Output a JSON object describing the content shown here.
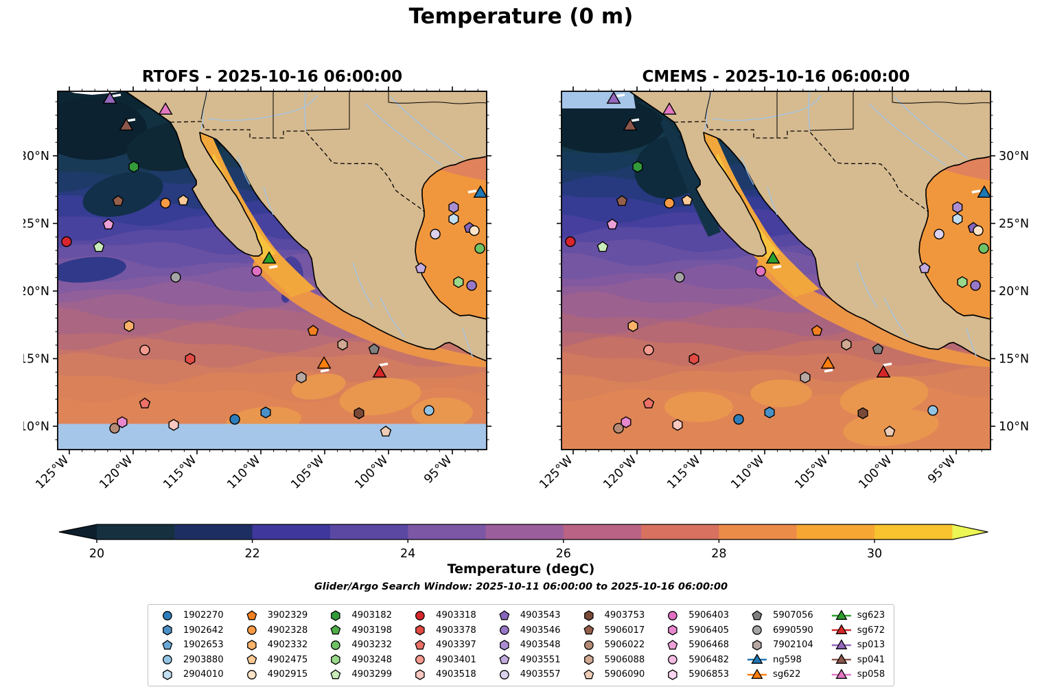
{
  "title": "Temperature (0 m)",
  "subtitle": "Glider/Argo Search Window: 2025-10-11 06:00:00 to 2025-10-16 06:00:00",
  "panels": [
    {
      "title": "RTOFS - 2025-10-16 06:00:00"
    },
    {
      "title": "CMEMS - 2025-10-16 06:00:00"
    }
  ],
  "colorbar": {
    "label": "Temperature (degC)",
    "ticks": [
      "20",
      "22",
      "24",
      "26",
      "28",
      "30"
    ],
    "tick_values": [
      20,
      22,
      24,
      26,
      28,
      30
    ],
    "range": [
      20,
      31
    ],
    "extend": "both",
    "segments": [
      "#0d1f2c",
      "#16303f",
      "#1d2e63",
      "#40379c",
      "#5a48a3",
      "#7b57a5",
      "#9b5e9c",
      "#bb6384",
      "#d87160",
      "#ec8c49",
      "#f6a633",
      "#f8c32e",
      "#ecf655"
    ]
  },
  "axes": {
    "x_tick_labels": [
      "125°W",
      "120°W",
      "115°W",
      "110°W",
      "105°W",
      "100°W",
      "95°W"
    ],
    "y_tick_labels": [
      "30°N",
      "25°N",
      "20°N",
      "15°N",
      "10°N"
    ]
  },
  "style": {
    "land": "#d6ba90",
    "no_data_ocean": "#a5c6e8",
    "coast": "#000000",
    "river": "#9ec4e8",
    "gulf_warm": "#f2a73c",
    "gulf_core": "#f7c33e",
    "gom_warm": "#f0973e",
    "coastal_warm": "#ec9547",
    "track_white": "#ffffff"
  },
  "legend": {
    "entries": [
      {
        "id": "1902270",
        "shape": "circle",
        "color": "#2d7dbb"
      },
      {
        "id": "1902642",
        "shape": "hexagon",
        "color": "#4a90c6"
      },
      {
        "id": "1902653",
        "shape": "pentagon",
        "color": "#6aa7d4"
      },
      {
        "id": "2903880",
        "shape": "circle",
        "color": "#93c4e4"
      },
      {
        "id": "2904010",
        "shape": "hexagon",
        "color": "#c2def1"
      },
      {
        "id": "3902329",
        "shape": "pentagon",
        "color": "#f28020"
      },
      {
        "id": "4902328",
        "shape": "circle",
        "color": "#f99b45"
      },
      {
        "id": "4902332",
        "shape": "hexagon",
        "color": "#fbb269"
      },
      {
        "id": "4902475",
        "shape": "pentagon",
        "color": "#fcca96"
      },
      {
        "id": "4902915",
        "shape": "circle",
        "color": "#fde4c8"
      },
      {
        "id": "4903182",
        "shape": "hexagon",
        "color": "#33993a"
      },
      {
        "id": "4903198",
        "shape": "pentagon",
        "color": "#4fae4a"
      },
      {
        "id": "4903232",
        "shape": "circle",
        "color": "#6ec264"
      },
      {
        "id": "4903248",
        "shape": "hexagon",
        "color": "#9ad88b"
      },
      {
        "id": "4903299",
        "shape": "pentagon",
        "color": "#c9ecba"
      },
      {
        "id": "4903318",
        "shape": "circle",
        "color": "#d8262c"
      },
      {
        "id": "4903378",
        "shape": "hexagon",
        "color": "#e14b44"
      },
      {
        "id": "4903397",
        "shape": "pentagon",
        "color": "#ec7168"
      },
      {
        "id": "4903401",
        "shape": "circle",
        "color": "#f49b90"
      },
      {
        "id": "4903518",
        "shape": "hexagon",
        "color": "#fac8c0"
      },
      {
        "id": "4903543",
        "shape": "pentagon",
        "color": "#8766bb"
      },
      {
        "id": "4903546",
        "shape": "circle",
        "color": "#9878c6"
      },
      {
        "id": "4903548",
        "shape": "hexagon",
        "color": "#ab8ed2"
      },
      {
        "id": "4903551",
        "shape": "pentagon",
        "color": "#c2abdf"
      },
      {
        "id": "4903557",
        "shape": "circle",
        "color": "#dcd2ee"
      },
      {
        "id": "4903753",
        "shape": "hexagon",
        "color": "#7a4a38"
      },
      {
        "id": "5906017",
        "shape": "pentagon",
        "color": "#95604b"
      },
      {
        "id": "5906022",
        "shape": "circle",
        "color": "#b58a74"
      },
      {
        "id": "5906088",
        "shape": "hexagon",
        "color": "#d0a993"
      },
      {
        "id": "5906090",
        "shape": "pentagon",
        "color": "#edccb6"
      },
      {
        "id": "5906403",
        "shape": "circle",
        "color": "#e06fc3"
      },
      {
        "id": "5906405",
        "shape": "hexagon",
        "color": "#e787cd"
      },
      {
        "id": "5906468",
        "shape": "pentagon",
        "color": "#eda0d7"
      },
      {
        "id": "5906482",
        "shape": "circle",
        "color": "#f4bce3"
      },
      {
        "id": "5906853",
        "shape": "hexagon",
        "color": "#f9d5ef"
      },
      {
        "id": "5907056",
        "shape": "pentagon",
        "color": "#7f7f7f"
      },
      {
        "id": "6990590",
        "shape": "circle",
        "color": "#a5a5a5"
      },
      {
        "id": "7902104",
        "shape": "hexagon",
        "color": "#b7a7a3"
      },
      {
        "id": "ng598",
        "shape": "triangle",
        "color": "#1f77b4",
        "glider": true
      },
      {
        "id": "sg622",
        "shape": "triangle",
        "color": "#ff7f0e",
        "glider": true
      },
      {
        "id": "sg623",
        "shape": "triangle",
        "color": "#2ca02c",
        "glider": true
      },
      {
        "id": "sg672",
        "shape": "triangle",
        "color": "#d62728",
        "glider": true
      },
      {
        "id": "sp013",
        "shape": "triangle",
        "color": "#9467bd",
        "glider": true
      },
      {
        "id": "sp041",
        "shape": "triangle",
        "color": "#8c564b",
        "glider": true
      },
      {
        "id": "sp058",
        "shape": "triangle",
        "color": "#e377c2",
        "glider": true
      }
    ]
  },
  "chart_data": {
    "type": "heatmap",
    "title": "Temperature (0 m)",
    "variable": "Sea surface temperature (degC)",
    "search_window": "2025-10-11 06:00:00 to 2025-10-16 06:00:00",
    "extent": {
      "lon_w": [
        125.9,
        92.3
      ],
      "lat": [
        8.3,
        34.8
      ]
    },
    "grid": false,
    "legend_position": "bottom",
    "panels": [
      {
        "name": "RTOFS",
        "time": "2025-10-16 06:00:00",
        "no_data": "south_of_10N",
        "lat_bands": [
          [
            35.0,
            "#0d2633"
          ],
          [
            33.2,
            "#113040"
          ],
          [
            31.6,
            "#15384b"
          ],
          [
            30.2,
            "#193a57"
          ],
          [
            29.0,
            "#1e3a68"
          ],
          [
            27.8,
            "#283b7e"
          ],
          [
            26.6,
            "#373d94"
          ],
          [
            25.4,
            "#47429e"
          ],
          [
            24.3,
            "#5849a2"
          ],
          [
            23.2,
            "#6751a4"
          ],
          [
            22.2,
            "#7557a3"
          ],
          [
            21.2,
            "#835ba0"
          ],
          [
            20.2,
            "#915f99"
          ],
          [
            19.2,
            "#9e638f"
          ],
          [
            18.2,
            "#ab6782"
          ],
          [
            17.1,
            "#b86c75"
          ],
          [
            16.0,
            "#c67469"
          ],
          [
            14.9,
            "#d17b60"
          ],
          [
            13.7,
            "#da815a"
          ],
          [
            12.3,
            "#df8457"
          ]
        ]
      },
      {
        "name": "CMEMS",
        "time": "2025-10-16 06:00:00",
        "no_data": "north_of_33.5N",
        "lat_bands": [
          [
            35.0,
            "#0d2835"
          ],
          [
            33.4,
            "#113140"
          ],
          [
            31.8,
            "#153a4e"
          ],
          [
            30.4,
            "#183a5a"
          ],
          [
            29.2,
            "#1d3a6b"
          ],
          [
            28.0,
            "#273a80"
          ],
          [
            26.8,
            "#363c93"
          ],
          [
            25.6,
            "#463f9d"
          ],
          [
            24.5,
            "#5748a1"
          ],
          [
            23.4,
            "#6650a3"
          ],
          [
            22.4,
            "#7456a2"
          ],
          [
            21.4,
            "#82599f"
          ],
          [
            20.4,
            "#8f5d98"
          ],
          [
            19.4,
            "#9c618e"
          ],
          [
            18.3,
            "#a96480"
          ],
          [
            17.2,
            "#b76973"
          ],
          [
            16.1,
            "#c57166"
          ],
          [
            15.0,
            "#d0795e"
          ],
          [
            13.8,
            "#d98158"
          ],
          [
            12.4,
            "#e08656"
          ]
        ]
      }
    ],
    "markers": [
      {
        "id": "sp013",
        "lon_w": 121.83,
        "lat": 34.16,
        "track": [
          10,
          -5
        ]
      },
      {
        "id": "sp058",
        "lon_w": 117.47,
        "lat": 33.35
      },
      {
        "id": "sp041",
        "lon_w": 120.54,
        "lat": 32.18,
        "track": [
          7,
          -8
        ]
      },
      {
        "id": "4903182",
        "lon_w": 119.95,
        "lat": 29.19
      },
      {
        "id": "5906017",
        "lon_w": 121.18,
        "lat": 26.65
      },
      {
        "id": "4902328",
        "lon_w": 117.47,
        "lat": 26.5
      },
      {
        "id": "4902475",
        "lon_w": 116.08,
        "lat": 26.7
      },
      {
        "id": "5906468",
        "lon_w": 121.94,
        "lat": 24.92
      },
      {
        "id": "4903318",
        "lon_w": 125.22,
        "lat": 23.65
      },
      {
        "id": "4903299",
        "lon_w": 122.69,
        "lat": 23.25
      },
      {
        "id": "6990590",
        "lon_w": 116.67,
        "lat": 21.02
      },
      {
        "id": "sg623",
        "lon_w": 109.35,
        "lat": 22.34,
        "track": [
          6,
          12
        ]
      },
      {
        "id": "5906403",
        "lon_w": 110.32,
        "lat": 21.47
      },
      {
        "id": "4902332",
        "lon_w": 120.32,
        "lat": 17.41
      },
      {
        "id": "4903401",
        "lon_w": 119.09,
        "lat": 15.64
      },
      {
        "id": "4903378",
        "lon_w": 115.54,
        "lat": 14.98
      },
      {
        "id": "3902329",
        "lon_w": 105.91,
        "lat": 17.06
      },
      {
        "id": "5906088",
        "lon_w": 103.6,
        "lat": 16.04
      },
      {
        "id": "5907056",
        "lon_w": 101.13,
        "lat": 15.69
      },
      {
        "id": "sg622",
        "lon_w": 105.05,
        "lat": 14.57,
        "track": [
          1,
          10
        ]
      },
      {
        "id": "7902104",
        "lon_w": 106.83,
        "lat": 13.61
      },
      {
        "id": "sg672",
        "lon_w": 100.7,
        "lat": 13.91,
        "track": [
          6,
          -12
        ]
      },
      {
        "id": "4903397",
        "lon_w": 119.09,
        "lat": 11.68
      },
      {
        "id": "5906405",
        "lon_w": 120.86,
        "lat": 10.3
      },
      {
        "id": "5906022",
        "lon_w": 121.45,
        "lat": 9.85
      },
      {
        "id": "4903518",
        "lon_w": 116.83,
        "lat": 10.1
      },
      {
        "id": "1902270",
        "lon_w": 112.04,
        "lat": 10.51
      },
      {
        "id": "1902642",
        "lon_w": 109.62,
        "lat": 11.02
      },
      {
        "id": "4903753",
        "lon_w": 102.31,
        "lat": 10.96
      },
      {
        "id": "5906090",
        "lon_w": 100.22,
        "lat": 9.6
      },
      {
        "id": "2903880",
        "lon_w": 96.83,
        "lat": 11.17
      },
      {
        "id": "ng598",
        "lon_w": 92.8,
        "lat": 27.21,
        "track": [
          -12,
          -2
        ]
      },
      {
        "id": "2904010",
        "lon_w": 94.9,
        "lat": 25.33
      },
      {
        "id": "4903548",
        "lon_w": 94.9,
        "lat": 26.19
      },
      {
        "id": "4903543",
        "lon_w": 93.66,
        "lat": 24.67
      },
      {
        "id": "4902915",
        "lon_w": 93.28,
        "lat": 24.47
      },
      {
        "id": "4903557",
        "lon_w": 96.34,
        "lat": 24.21
      },
      {
        "id": "4903232",
        "lon_w": 92.85,
        "lat": 23.15
      },
      {
        "id": "4903551",
        "lon_w": 97.47,
        "lat": 21.68
      },
      {
        "id": "4903248",
        "lon_w": 94.52,
        "lat": 20.66
      },
      {
        "id": "4903546",
        "lon_w": 93.49,
        "lat": 20.41
      }
    ]
  }
}
